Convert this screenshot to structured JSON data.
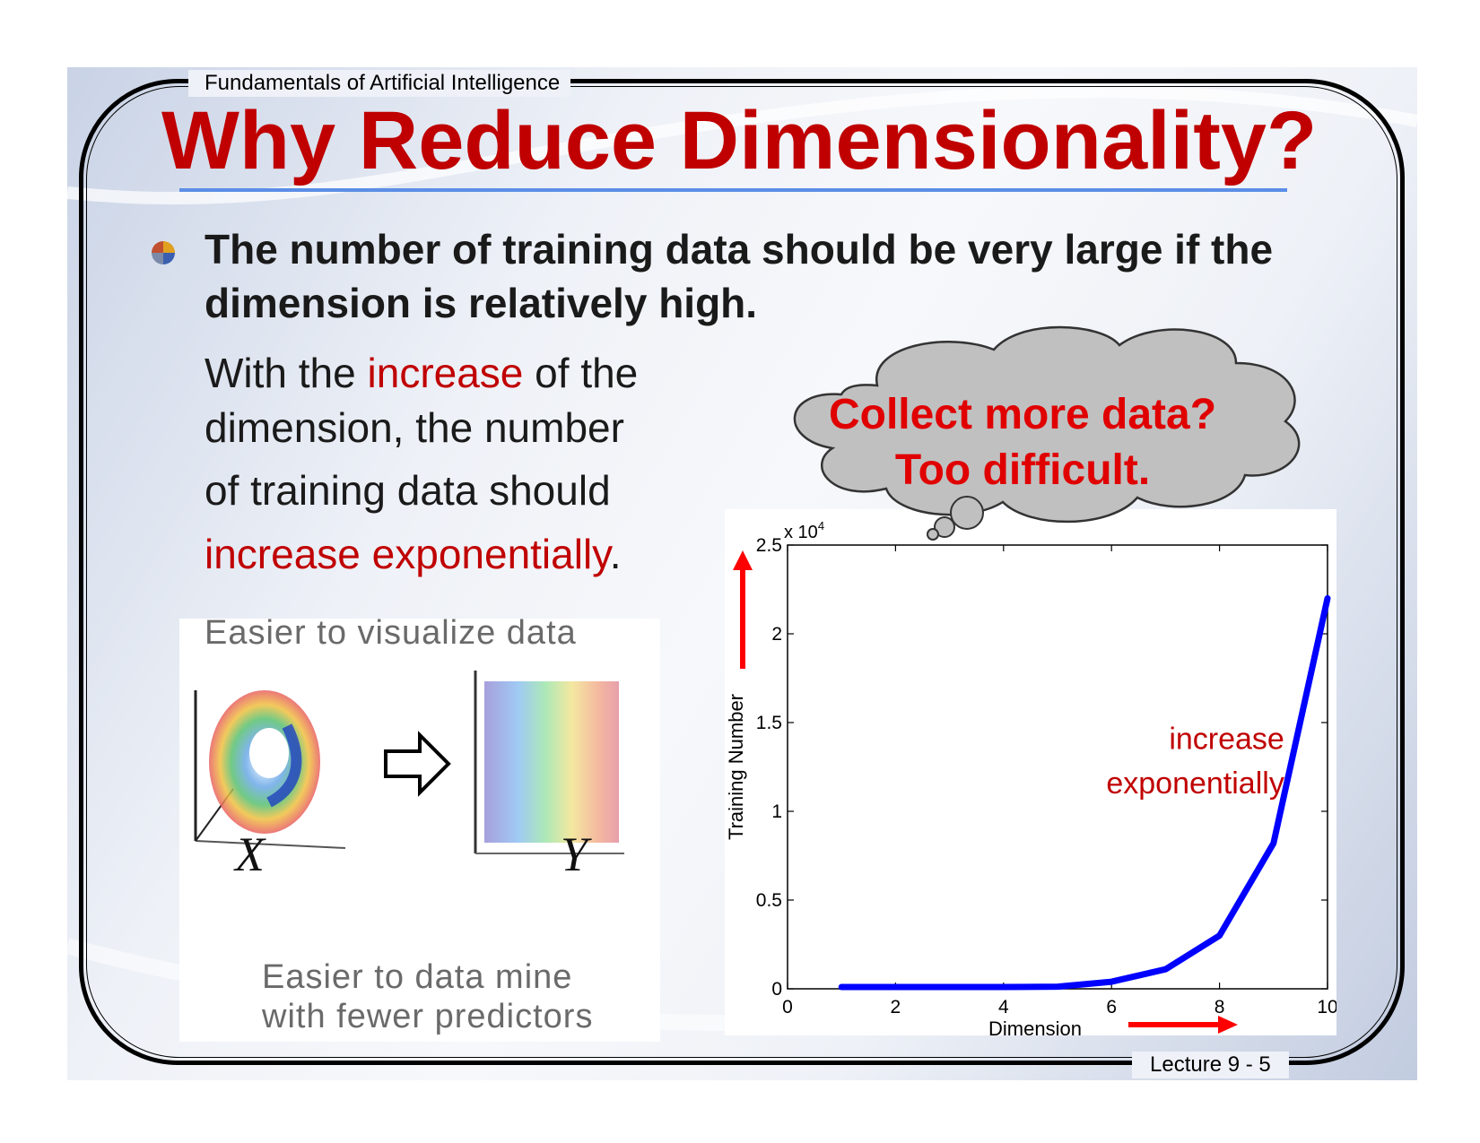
{
  "header": {
    "course": "Fundamentals of Artificial Intelligence",
    "title": "Why Reduce Dimensionality?"
  },
  "footer": {
    "lecture": "Lecture 9 - 5"
  },
  "bullet": {
    "text": "The number of training data should be very large if the dimension is relatively high."
  },
  "paragraph": {
    "line1_a": "With the ",
    "line1_red": "increase",
    "line1_b": " of the",
    "line2": "dimension, the number",
    "line3": "of training data should",
    "line4_red": "increase exponentially",
    "line4_end": "."
  },
  "figure": {
    "top_caption": "Easier to visualize data",
    "x_label": "X",
    "y_label": "Y",
    "bottom_caption_1": "Easier to data mine",
    "bottom_caption_2": "with fewer predictors"
  },
  "thought_bubble": {
    "line1": "Collect more data?",
    "line2": "Too difficult."
  },
  "colors": {
    "title_red": "#c00000",
    "accent_red": "#e00000",
    "rule_blue": "#5b8ee6",
    "curve_blue": "#0000ff"
  },
  "chart_data": {
    "type": "line",
    "title": "",
    "xlabel": "Dimension",
    "ylabel": "Training Number",
    "y_multiplier": "x 10^4",
    "xlim": [
      0,
      10
    ],
    "ylim": [
      0,
      2.5
    ],
    "x_ticks": [
      0,
      2,
      4,
      6,
      8,
      10
    ],
    "y_ticks": [
      0,
      0.5,
      1,
      1.5,
      2,
      2.5
    ],
    "x_tick_labels": [
      "0",
      "2",
      "4",
      "6",
      "8",
      "10"
    ],
    "y_tick_labels": [
      "0",
      "0.5",
      "1",
      "1.5",
      "2",
      "2.5"
    ],
    "multiplier_base": "x 10",
    "multiplier_exp": "4",
    "series": [
      {
        "x": [
          1,
          2,
          3,
          4,
          5,
          6,
          7,
          8,
          9,
          10
        ],
        "values": [
          0.01,
          0.01,
          0.01,
          0.01,
          0.012,
          0.04,
          0.11,
          0.3,
          0.82,
          2.2
        ]
      }
    ],
    "annotation": {
      "line1": "increase",
      "line2": "exponentially"
    },
    "grid": false
  }
}
